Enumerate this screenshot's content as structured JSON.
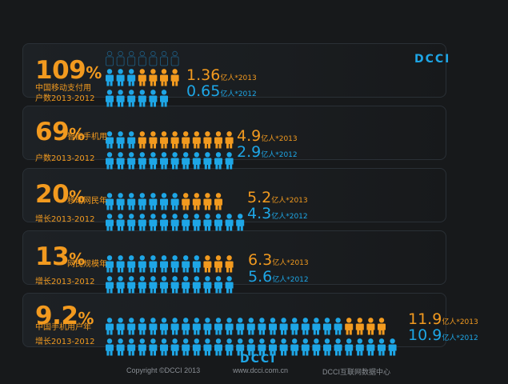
{
  "logo_text": "DCCI",
  "footer": {
    "copyright": "Copyright ©DCCI 2013",
    "site": "www.dcci.com.cn",
    "center": "DCCI互联网数据中心",
    "logo": "DCCI"
  },
  "colors": {
    "orange": "#f29a1f",
    "blue": "#1ea6e6",
    "background": "#17191b"
  },
  "rows": [
    {
      "pct_number": "109",
      "pct_unit": "%",
      "label_line1": "中国移动支付用",
      "label_line2": "户数2013-2012",
      "v2013": "1.36",
      "v2012": "0.65",
      "u2013": "亿人*2013",
      "u2012": "亿人*2012"
    },
    {
      "pct_number": "69",
      "pct_unit": "%",
      "label_line1": "智能手机用",
      "label_line2": "户数2013-2012",
      "v2013": "4.9",
      "v2012": "2.9",
      "u2013": "亿人*2013",
      "u2012": "亿人*2012"
    },
    {
      "pct_number": "20",
      "pct_unit": "%",
      "label_line1": "移动网民年",
      "label_line2": "增长2013-2012",
      "v2013": "5.2",
      "v2012": "4.3",
      "u2013": "亿人*2013",
      "u2012": "亿人*2012"
    },
    {
      "pct_number": "13",
      "pct_unit": "%",
      "label_line1": "网民规模年",
      "label_line2": "增长2013-2012",
      "v2013": "6.3",
      "v2012": "5.6",
      "u2013": "亿人*2013",
      "u2012": "亿人*2012"
    },
    {
      "pct_number": "9.2",
      "pct_unit": "%",
      "label_line1": "中国手机用户年",
      "label_line2": "增长2013-2012",
      "v2013": "11.9",
      "v2012": "10.9",
      "u2013": "亿人*2013",
      "u2012": "亿人*2012"
    }
  ],
  "chart_data": {
    "type": "bar",
    "title": "",
    "categories": [
      "中国移动支付用户数2013-2012",
      "智能手机用户数2013-2012",
      "移动网民年增长2013-2012",
      "网民规模年增长2013-2012",
      "中国手机用户年增长2013-2012"
    ],
    "unit": "亿人",
    "growth_percent": [
      109,
      69,
      20,
      13,
      9.2
    ],
    "series": [
      {
        "name": "2013",
        "values": [
          1.36,
          4.9,
          5.2,
          6.3,
          11.9
        ],
        "color": "#f29a1f"
      },
      {
        "name": "2012",
        "values": [
          0.65,
          2.9,
          4.3,
          5.6,
          10.9
        ],
        "color": "#1ea6e6"
      }
    ]
  }
}
